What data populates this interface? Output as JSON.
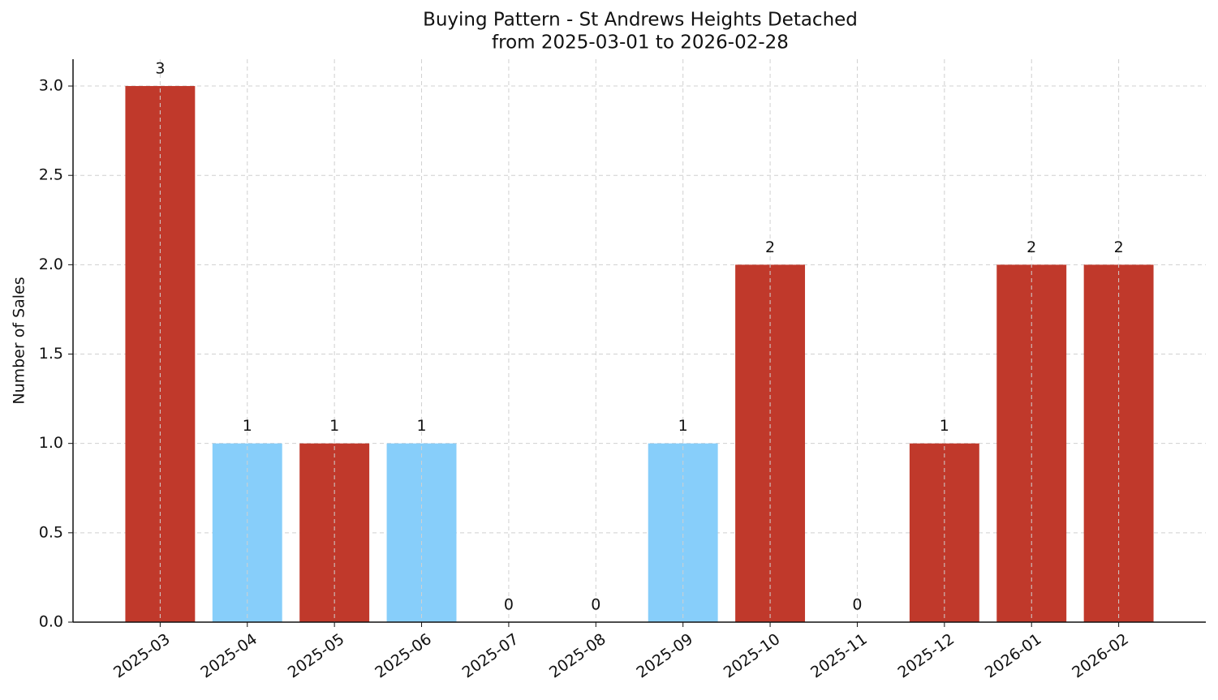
{
  "chart_data": {
    "type": "bar",
    "title": "Buying Pattern - St Andrews Heights Detached",
    "subtitle": "from 2025-03-01 to 2026-02-28",
    "y_label": "Number of Sales",
    "categories": [
      "2025-03",
      "2025-04",
      "2025-05",
      "2025-06",
      "2025-07",
      "2025-08",
      "2025-09",
      "2025-10",
      "2025-11",
      "2025-12",
      "2026-01",
      "2026-02"
    ],
    "values": [
      3,
      1,
      1,
      1,
      0,
      0,
      1,
      2,
      0,
      1,
      2,
      2
    ],
    "colors": [
      "#c0392b",
      "#87cefa",
      "#c0392b",
      "#87cefa",
      "#c0392b",
      "#c0392b",
      "#87cefa",
      "#c0392b",
      "#c0392b",
      "#c0392b",
      "#c0392b",
      "#c0392b"
    ],
    "ylim": [
      0,
      3.15
    ],
    "yticks": [
      {
        "value": 0,
        "label": "0.0"
      },
      0.5,
      {
        "value": 1,
        "label": "1.0"
      },
      1.5,
      {
        "value": 2,
        "label": "2.0"
      },
      2.5,
      {
        "value": 3,
        "label": "3.0"
      }
    ],
    "grid": true
  }
}
